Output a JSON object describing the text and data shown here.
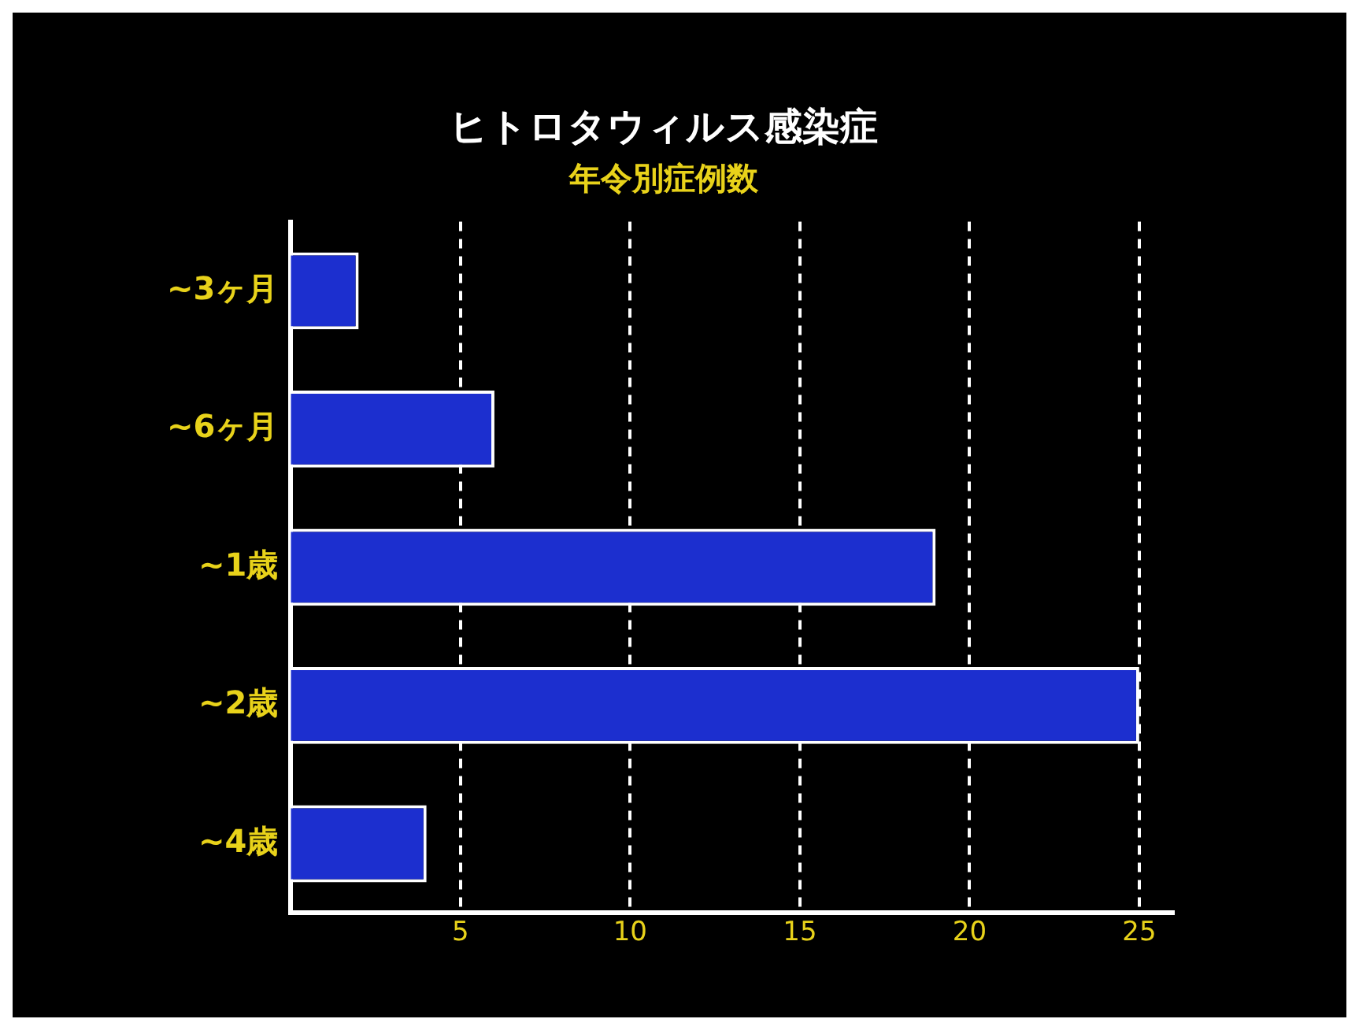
{
  "chart_data": {
    "type": "bar",
    "orientation": "horizontal",
    "title": "ヒトロタウィルス感染症",
    "subtitle": "年令別症例数",
    "categories": [
      "~3ヶ月",
      "~6ヶ月",
      "~1歳",
      "~2歳",
      "~4歳"
    ],
    "values": [
      2,
      6,
      19,
      25,
      4
    ],
    "color": "#1c2fcf",
    "xlim": [
      0,
      26
    ],
    "xticks": [
      5,
      10,
      15,
      20,
      25
    ],
    "grid": "x",
    "legend": false
  }
}
